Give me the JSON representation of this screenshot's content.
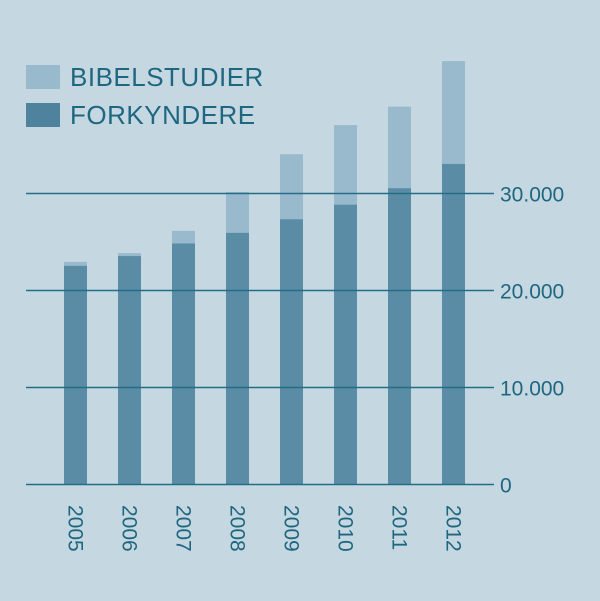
{
  "colors": {
    "background": "#c5d8e1",
    "forkyndere": "#5a8ca5",
    "bibelstudier": "#99b9cc",
    "gridline": "#246d88",
    "text": "#1f6680"
  },
  "legend": [
    {
      "label": "BIBELSTUDIER",
      "color": "#99b9cc"
    },
    {
      "label": "FORKYNDERE",
      "color": "#4f829d"
    }
  ],
  "chart_data": {
    "type": "bar",
    "stacked": true,
    "title": "",
    "xlabel": "",
    "ylabel": "",
    "categories": [
      "2005",
      "2006",
      "2007",
      "2008",
      "2009",
      "2010",
      "2011",
      "2012"
    ],
    "series": [
      {
        "name": "FORKYNDERE",
        "values": [
          22500,
          23500,
          24800,
          25900,
          27300,
          28800,
          30500,
          33000
        ]
      },
      {
        "name": "BIBELSTUDIER",
        "values": [
          400,
          300,
          1300,
          4200,
          6700,
          8200,
          8400,
          10600
        ]
      }
    ],
    "totals": [
      22900,
      23800,
      26100,
      30100,
      34000,
      37000,
      38900,
      43600
    ],
    "yticks": [
      {
        "value": 0,
        "label": "0"
      },
      {
        "value": 10000,
        "label": "10.000"
      },
      {
        "value": 20000,
        "label": "20.000"
      },
      {
        "value": 30000,
        "label": "30.000"
      }
    ],
    "ylim": [
      0,
      45000
    ],
    "grid": true,
    "legend_position": "top-left",
    "x_label_rotation": 90
  }
}
